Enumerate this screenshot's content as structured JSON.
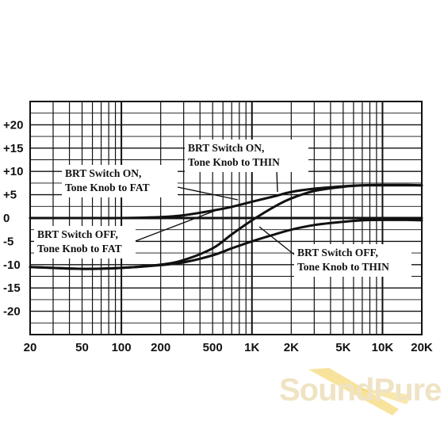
{
  "chart_data": {
    "type": "line",
    "xscale": "log",
    "xlim": [
      20,
      20000
    ],
    "ylim": [
      -25,
      25
    ],
    "grid": true,
    "x_tick_labels": [
      "20",
      "50",
      "100",
      "200",
      "500",
      "1K",
      "2K",
      "5K",
      "10K",
      "20K"
    ],
    "x_tick_values": [
      20,
      50,
      100,
      200,
      500,
      1000,
      2000,
      5000,
      10000,
      20000
    ],
    "y_tick_labels": [
      "+20",
      "+15",
      "+10",
      "+5",
      "0",
      "-5",
      "-10",
      "-15",
      "-20"
    ],
    "y_tick_values": [
      20,
      15,
      10,
      5,
      0,
      -5,
      -10,
      -15,
      -20
    ],
    "series": [
      {
        "name": "BRT Switch ON, Tone Knob to THIN",
        "label_lines": [
          "BRT Switch ON,",
          "Tone Knob to THIN"
        ],
        "x": [
          20,
          50,
          100,
          200,
          300,
          500,
          700,
          1000,
          1500,
          2000,
          3000,
          5000,
          7000,
          10000,
          15000,
          20000
        ],
        "y": [
          -10.5,
          -10.9,
          -10.7,
          -10,
          -9,
          -6.5,
          -3.5,
          -0.5,
          2.5,
          4.2,
          5.8,
          6.7,
          7,
          7.1,
          7.1,
          7
        ]
      },
      {
        "name": "BRT Switch ON, Tone Knob to FAT",
        "label_lines": [
          "BRT Switch ON,",
          "Tone Knob to FAT"
        ],
        "x": [
          20,
          50,
          100,
          200,
          300,
          500,
          700,
          1000,
          1500,
          2000,
          3000,
          5000,
          7000,
          10000,
          15000,
          20000
        ],
        "y": [
          0,
          0,
          0,
          0.2,
          0.6,
          1.6,
          2.4,
          3.5,
          4.7,
          5.6,
          6.3,
          6.8,
          7,
          7,
          7,
          7
        ]
      },
      {
        "name": "BRT Switch OFF, Tone Knob to FAT",
        "label_lines": [
          "BRT Switch OFF,",
          "Tone Knob to FAT"
        ],
        "x": [
          20,
          50,
          100,
          200,
          300,
          500,
          700,
          1000,
          1500,
          2000,
          3000,
          5000,
          7000,
          10000,
          15000,
          20000
        ],
        "y": [
          0,
          0,
          0,
          0,
          0,
          0,
          0,
          0,
          0,
          0,
          0,
          0,
          0,
          0,
          0,
          0
        ]
      },
      {
        "name": "BRT Switch OFF, Tone Knob to THIN",
        "label_lines": [
          "BRT Switch OFF,",
          "Tone Knob to THIN"
        ],
        "x": [
          20,
          50,
          100,
          200,
          300,
          500,
          700,
          1000,
          1500,
          2000,
          3000,
          5000,
          7000,
          10000,
          15000,
          20000
        ],
        "y": [
          -10.5,
          -10.9,
          -10.7,
          -10.1,
          -9.5,
          -8,
          -6.5,
          -5,
          -3.5,
          -2.5,
          -1.5,
          -0.8,
          -0.5,
          -0.4,
          -0.4,
          -0.5
        ]
      }
    ]
  },
  "watermark": {
    "text": "SoundPure",
    "color": "#efe3c4",
    "accent": "#f2cc4a"
  }
}
